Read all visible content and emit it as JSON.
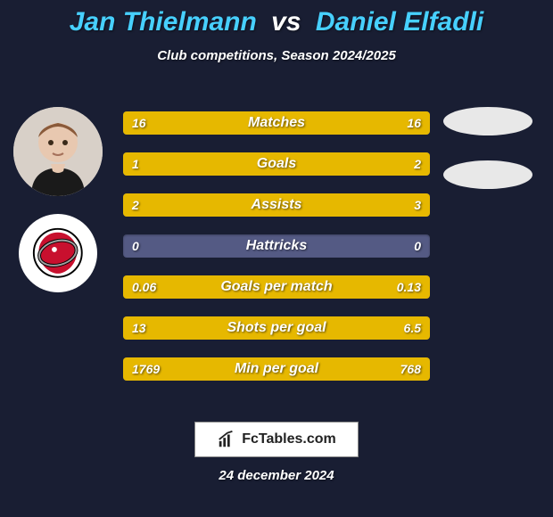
{
  "title": {
    "player1": "Jan Thielmann",
    "vs": "vs",
    "player2": "Daniel Elfadli",
    "fontsize": 30,
    "p1_color": "#47d0ff",
    "vs_color": "#ffffff",
    "p2_color": "#47d0ff"
  },
  "subtitle": {
    "text": "Club competitions, Season 2024/2025",
    "fontsize": 15
  },
  "colors": {
    "background": "#191e33",
    "bar_track": "#545a84",
    "bar_left": "#e6b800",
    "bar_right": "#e6b800",
    "bar_label": "#ffffff",
    "avatar_bg": "#d0c8c0",
    "logo_bg": "#ffffff",
    "ellipse_bg": "#e8e8e8"
  },
  "bars": {
    "label_fontsize": 16,
    "value_fontsize": 14,
    "rows": [
      {
        "label": "Matches",
        "left_val": "16",
        "right_val": "16",
        "left_pct": 50,
        "right_pct": 50
      },
      {
        "label": "Goals",
        "left_val": "1",
        "right_val": "2",
        "left_pct": 33.3,
        "right_pct": 66.7
      },
      {
        "label": "Assists",
        "left_val": "2",
        "right_val": "3",
        "left_pct": 40,
        "right_pct": 60
      },
      {
        "label": "Hattricks",
        "left_val": "0",
        "right_val": "0",
        "left_pct": 0,
        "right_pct": 0
      },
      {
        "label": "Goals per match",
        "left_val": "0.06",
        "right_val": "0.13",
        "left_pct": 31.6,
        "right_pct": 68.4
      },
      {
        "label": "Shots per goal",
        "left_val": "13",
        "right_val": "6.5",
        "left_pct": 66.7,
        "right_pct": 33.3
      },
      {
        "label": "Min per goal",
        "left_val": "1769",
        "right_val": "768",
        "left_pct": 69.7,
        "right_pct": 30.3
      }
    ]
  },
  "footer": {
    "brand": "FcTables.com",
    "date": "24 december 2024",
    "date_fontsize": 15
  },
  "icons": {
    "avatar": "player-avatar",
    "club_logo": "club-logo",
    "brand_logo": "fctables-logo"
  }
}
